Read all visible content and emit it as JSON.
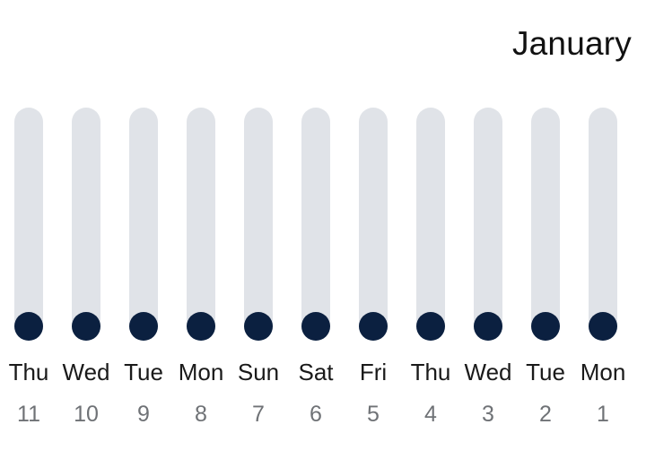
{
  "header": {
    "month": "January"
  },
  "days": [
    {
      "weekday": "Thu",
      "day": "11",
      "level": 0
    },
    {
      "weekday": "Wed",
      "day": "10",
      "level": 0
    },
    {
      "weekday": "Tue",
      "day": "9",
      "level": 0
    },
    {
      "weekday": "Mon",
      "day": "8",
      "level": 0
    },
    {
      "weekday": "Sun",
      "day": "7",
      "level": 0
    },
    {
      "weekday": "Sat",
      "day": "6",
      "level": 0
    },
    {
      "weekday": "Fri",
      "day": "5",
      "level": 0
    },
    {
      "weekday": "Thu",
      "day": "4",
      "level": 0
    },
    {
      "weekday": "Wed",
      "day": "3",
      "level": 0
    },
    {
      "weekday": "Tue",
      "day": "2",
      "level": 0
    },
    {
      "weekday": "Mon",
      "day": "1",
      "level": 0
    }
  ],
  "colors": {
    "track": "#e0e3e8",
    "knob": "#0b2040",
    "weekday": "#1a1a1a",
    "daynum": "#6f7276"
  }
}
